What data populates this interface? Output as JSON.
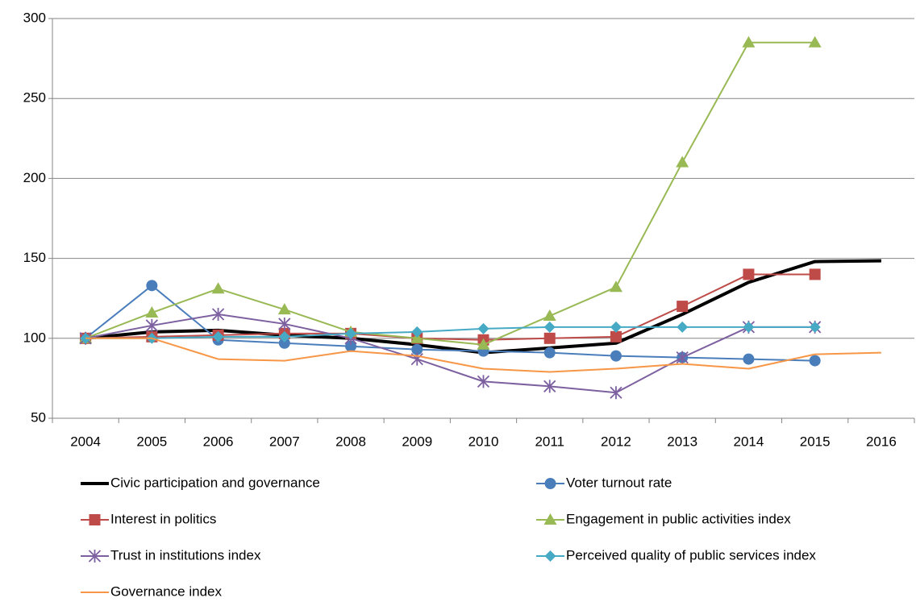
{
  "chart_data": {
    "type": "line",
    "categories": [
      "2004",
      "2005",
      "2006",
      "2007",
      "2008",
      "2009",
      "2010",
      "2011",
      "2012",
      "2013",
      "2014",
      "2015",
      "2016"
    ],
    "ylim": [
      50,
      300
    ],
    "yticks": [
      50,
      100,
      150,
      200,
      250,
      300
    ],
    "grid": true,
    "series": [
      {
        "name": "Civic participation and governance",
        "color": "#000000",
        "marker": "none",
        "line_width": 4,
        "values": [
          100,
          104,
          105,
          102,
          100,
          96,
          91,
          94,
          97,
          115,
          135,
          148,
          148.5
        ]
      },
      {
        "name": "Voter turnout rate",
        "color": "#4a7ebb",
        "marker": "circle",
        "line_width": 2,
        "values": [
          100,
          133,
          99,
          97,
          95,
          93,
          92,
          91,
          89,
          88,
          87,
          86,
          null
        ]
      },
      {
        "name": "Interest in politics",
        "color": "#be4b48",
        "marker": "square",
        "line_width": 2,
        "values": [
          100,
          101,
          102,
          103,
          103,
          100,
          99,
          100,
          101,
          120,
          140,
          140,
          null
        ]
      },
      {
        "name": "Engagement in public activities index",
        "color": "#98b954",
        "marker": "triangle",
        "line_width": 2,
        "values": [
          100,
          116,
          131,
          118,
          104,
          100,
          96,
          114,
          132,
          210,
          285,
          285,
          null
        ]
      },
      {
        "name": "Trust in institutions index",
        "color": "#7d60a0",
        "marker": "star",
        "line_width": 2,
        "values": [
          100,
          108,
          115,
          109,
          100,
          87,
          73,
          70,
          66,
          88,
          107,
          107,
          null
        ]
      },
      {
        "name": "Perceived quality of public services index",
        "color": "#46aac5",
        "marker": "diamond",
        "line_width": 2,
        "values": [
          100,
          100,
          101,
          101,
          103,
          104,
          106,
          107,
          107,
          107,
          107,
          107,
          null
        ]
      },
      {
        "name": "Governance index",
        "color": "#f79646",
        "marker": "none",
        "line_width": 2,
        "values": [
          100,
          100,
          87,
          86,
          92,
          89,
          81,
          79,
          81,
          84,
          81,
          90,
          91
        ]
      }
    ]
  }
}
